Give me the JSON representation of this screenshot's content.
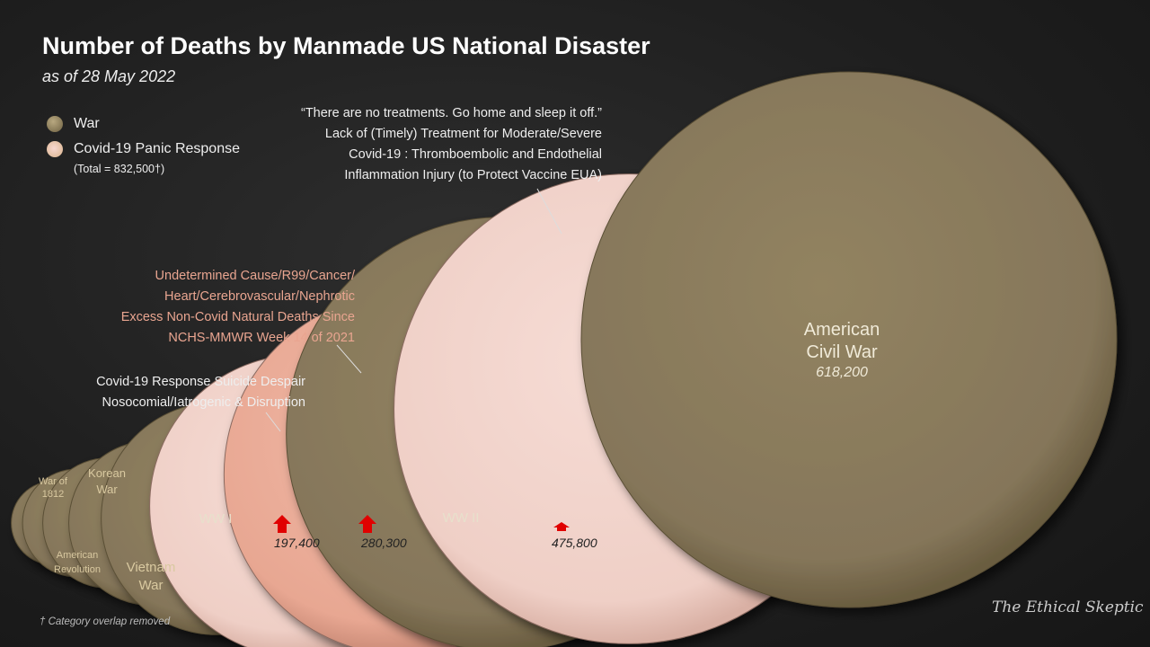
{
  "chart_data": {
    "type": "bubble",
    "title": "Number of Deaths by Manmade US National Disaster",
    "subtitle": "as of 28 May 2022",
    "legend": [
      {
        "label": "War",
        "color": "#8a7b58"
      },
      {
        "label": "Covid-19 Panic Response",
        "color": "#f2d4cb",
        "note": "(Total = 832,500†)"
      }
    ],
    "series": [
      {
        "name": "War of 1812",
        "category": "War",
        "value": 15000
      },
      {
        "name": "American Revolution",
        "category": "War",
        "value": 25000
      },
      {
        "name": "Korean War",
        "category": "War",
        "value": 36500
      },
      {
        "name": "Vietnam War",
        "category": "War",
        "value": 58200
      },
      {
        "name": "WW I",
        "category": "War",
        "value": 116500
      },
      {
        "name": "Covid-19 Response Suicide Despair Nosocomial/Iatrogenic & Disruption",
        "category": "Covid-19 Panic Response",
        "value": 197400,
        "value_label": "197,400"
      },
      {
        "name": "Excess Non-Covid Natural Deaths",
        "category": "Covid-19 Panic Response",
        "value": 280300,
        "value_label": "280,300"
      },
      {
        "name": "WW II",
        "category": "War",
        "value": 405400
      },
      {
        "name": "Lack of (Timely) Treatment",
        "category": "Covid-19 Panic Response",
        "value": 475800,
        "value_label": "475,800"
      },
      {
        "name": "American Civil War",
        "category": "War",
        "value": 618200,
        "value_label": "618,200"
      }
    ],
    "labels": {
      "w1812": [
        "War of",
        "1812"
      ],
      "rev": [
        "American",
        "Revolution"
      ],
      "korea": [
        "Korean",
        "War"
      ],
      "vietnam": [
        "Vietnam",
        "War"
      ],
      "ww1": "WW I",
      "ww2": "WW II",
      "civil": [
        "American",
        "Civil War"
      ]
    },
    "annotations": {
      "suicide": [
        "Covid-19 Response Suicide Despair",
        "Nosocomial/Iatrogenic & Disruption"
      ],
      "excess": [
        "Undetermined Cause/R99/Cancer/",
        "Heart/Cerebrovascular/Nephrotic",
        "Excess Non-Covid Natural Deaths Since",
        "NCHS-MMWR Week 14 of 2021"
      ],
      "treatment": [
        "“There are no treatments. Go home and sleep it off.”",
        "Lack of (Timely) Treatment for Moderate/Severe",
        "Covid-19 : Thromboembolic and Endothelial",
        "Inflammation Injury (to Protect Vaccine EUA)"
      ]
    },
    "footnote": "† Category overlap removed",
    "signature": "The Ethical Skeptic"
  }
}
